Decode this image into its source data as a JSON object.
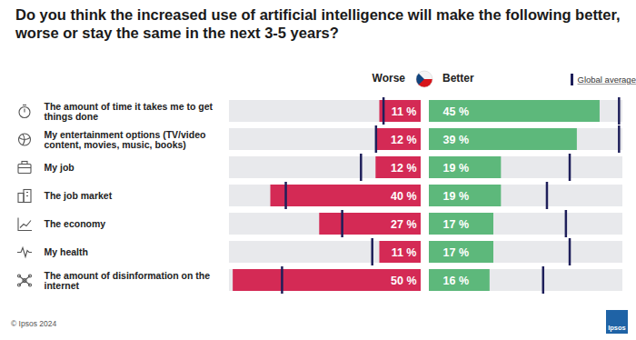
{
  "chart_data": {
    "type": "bar",
    "orientation": "horizontal",
    "title": "Do you think the increased use of artificial intelligence will make the following better, worse or stay the same in the next 3-5 years?",
    "categories": [
      "The amount of time it takes me to get things done",
      "My entertainment options (TV/video content, movies, music, books)",
      "My job",
      "The job market",
      "The economy",
      "My health",
      "The amount of disinformation on the internet"
    ],
    "series": [
      {
        "name": "Worse",
        "color": "#d42a55",
        "values": [
          11,
          12,
          12,
          40,
          27,
          11,
          50
        ],
        "value_labels": [
          "11 %",
          "12 %",
          "12 %",
          "40 %",
          "27 %",
          "11 %",
          "50 %"
        ],
        "global_average": [
          10,
          12,
          16,
          36,
          21,
          13,
          37
        ]
      },
      {
        "name": "Better",
        "color": "#5db87b",
        "values": [
          45,
          39,
          19,
          19,
          17,
          17,
          16
        ],
        "value_labels": [
          "45 %",
          "39 %",
          "19 %",
          "19 %",
          "17 %",
          "17 %",
          "16 %"
        ],
        "global_average": [
          50,
          50,
          37,
          31,
          36,
          37,
          30
        ]
      }
    ],
    "global_average_label": "Global average",
    "xlim": [
      0,
      51
    ],
    "tick_labels": false,
    "data_labels": true,
    "grid": false,
    "caption": "© Ipsos 2024",
    "logo": "Ipsos"
  }
}
